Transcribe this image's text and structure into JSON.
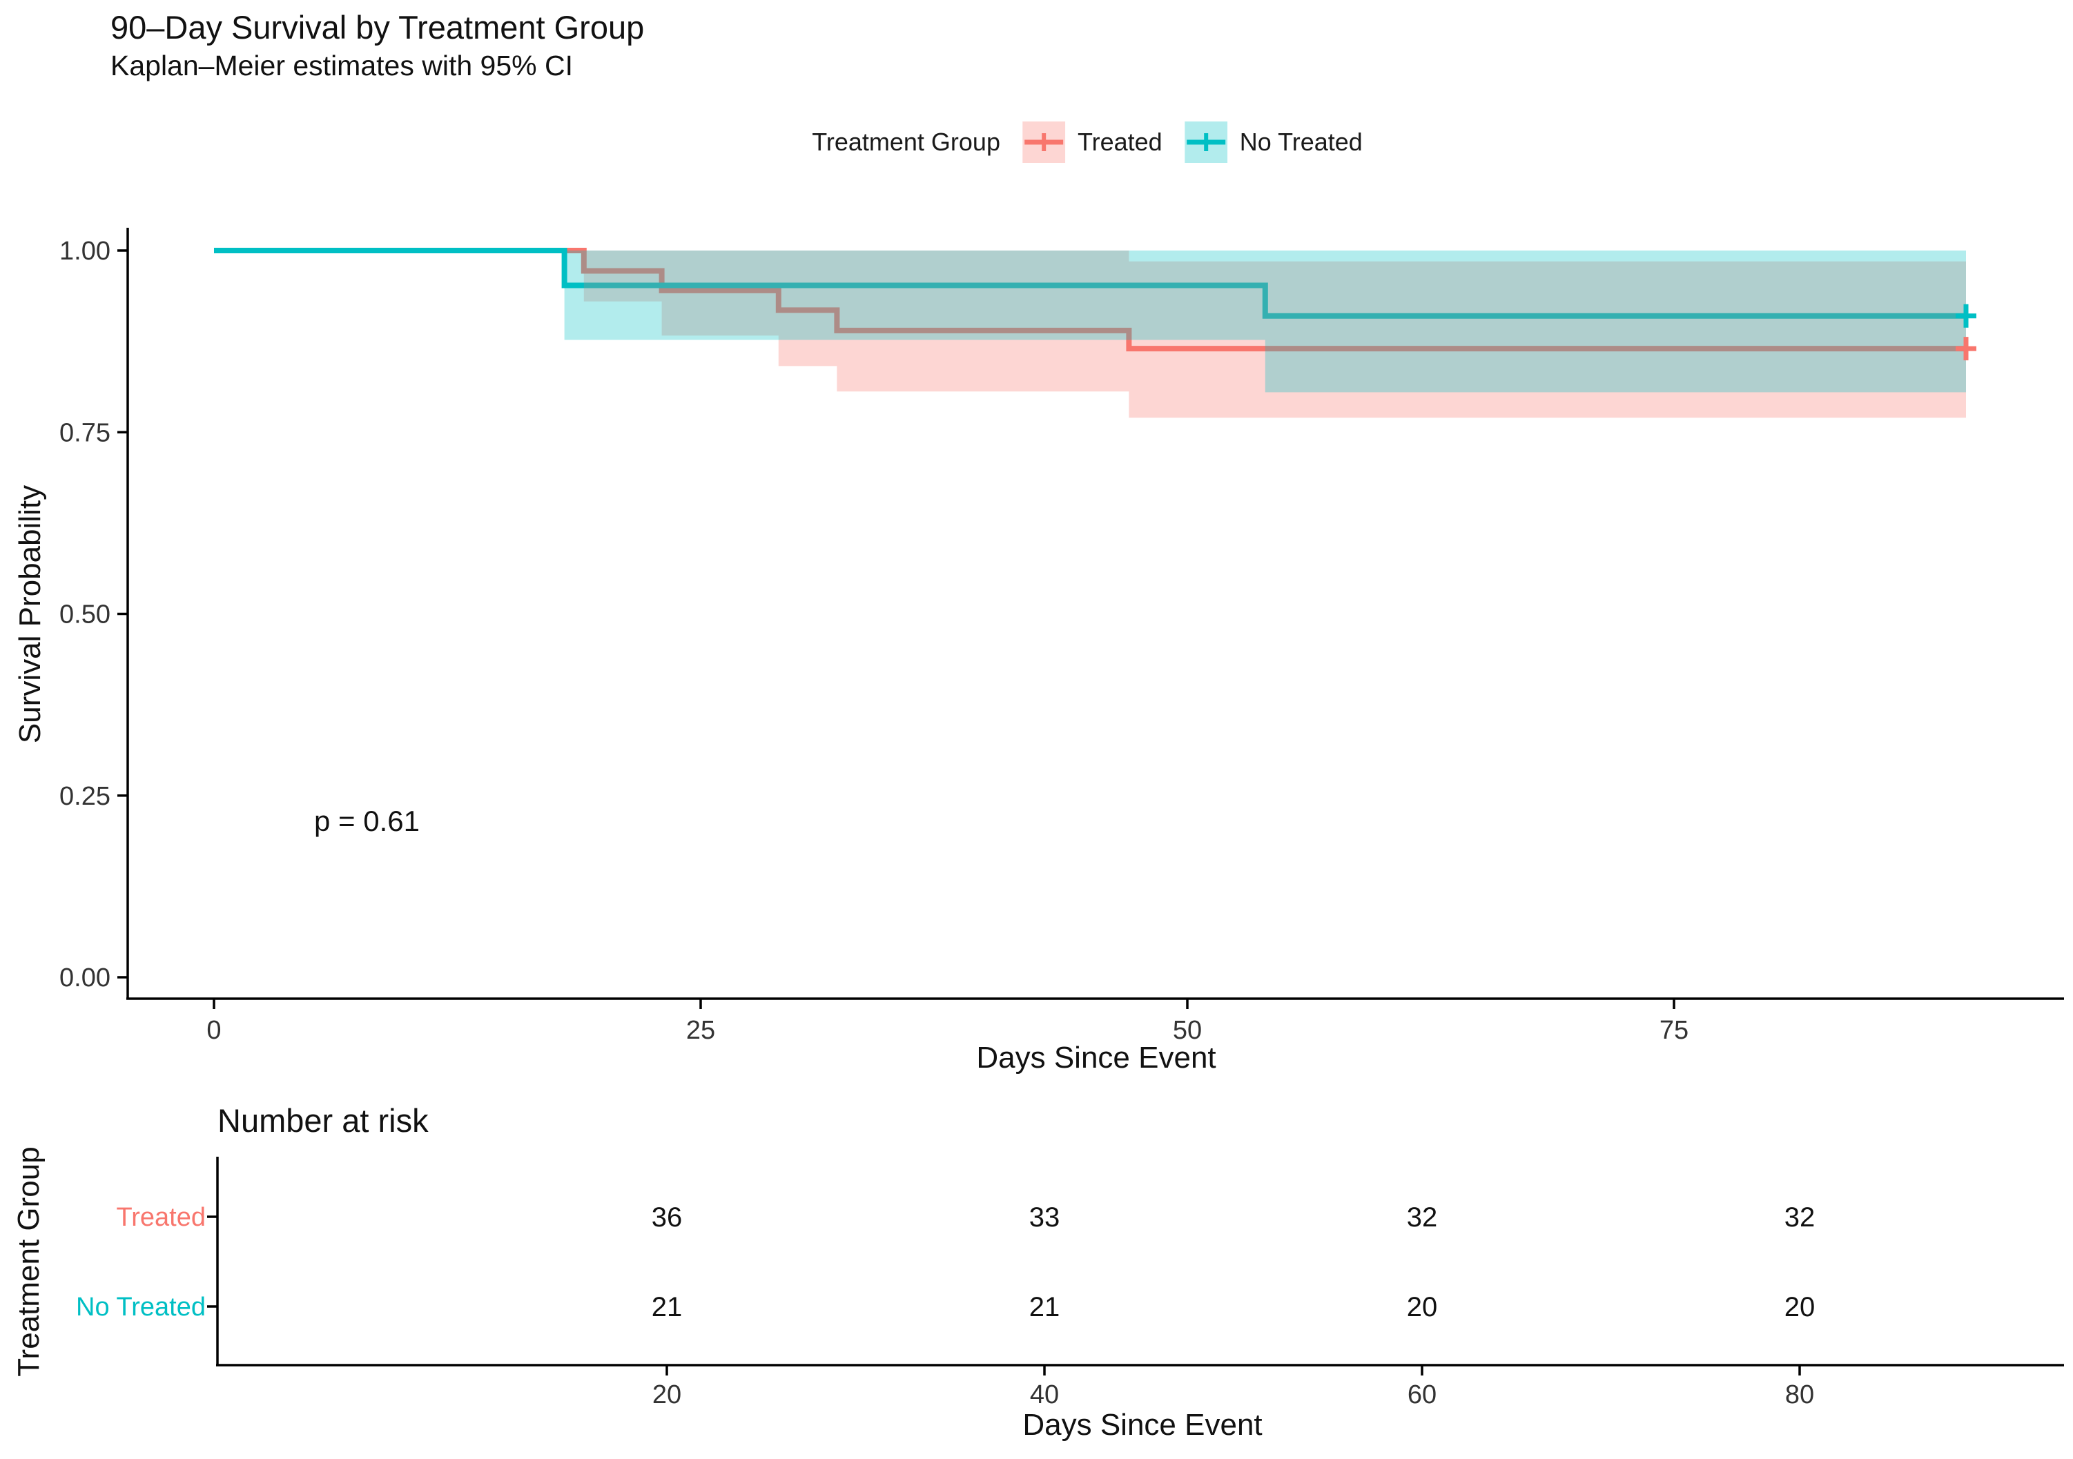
{
  "header": {
    "title": "90–Day Survival by Treatment Group",
    "subtitle": "Kaplan–Meier estimates with 95% CI"
  },
  "legend": {
    "title": "Treatment Group",
    "items": [
      {
        "label": "Treated",
        "color": "#F8766D"
      },
      {
        "label": "No Treated",
        "color": "#00BFC4"
      }
    ]
  },
  "chart_data": {
    "type": "line",
    "subtype": "kaplan-meier-step",
    "title": "90–Day Survival by Treatment Group",
    "subtitle": "Kaplan–Meier estimates with 95% CI",
    "xlabel": "Days Since Event",
    "ylabel": "Survival Probability",
    "pvalue_text": "p = 0.61",
    "xlim": [
      0,
      95
    ],
    "ylim": [
      0,
      1
    ],
    "x_ticks": [
      {
        "value": 0,
        "label": "0"
      },
      {
        "value": 25,
        "label": "25"
      },
      {
        "value": 50,
        "label": "50"
      },
      {
        "value": 75,
        "label": "75"
      }
    ],
    "y_ticks": [
      {
        "value": 0.0,
        "label": "0.00"
      },
      {
        "value": 0.25,
        "label": "0.25"
      },
      {
        "value": 0.5,
        "label": "0.50"
      },
      {
        "value": 0.75,
        "label": "0.75"
      },
      {
        "value": 1.0,
        "label": "1.00"
      }
    ],
    "grid": false,
    "legend_position": "top",
    "series": [
      {
        "name": "Treated",
        "color": "#F8766D",
        "ci_alpha": 0.3,
        "end_time": 90,
        "censored_at_end": true,
        "steps": [
          {
            "t": 0,
            "s": 1.0
          },
          {
            "t": 19,
            "s": 0.972
          },
          {
            "t": 23,
            "s": 0.945
          },
          {
            "t": 29,
            "s": 0.918
          },
          {
            "t": 32,
            "s": 0.89
          },
          {
            "t": 47,
            "s": 0.865
          }
        ],
        "ci": [
          {
            "from": 19,
            "to": 23,
            "lower": 0.93,
            "upper": 1.0
          },
          {
            "from": 23,
            "to": 29,
            "lower": 0.883,
            "upper": 1.0
          },
          {
            "from": 29,
            "to": 32,
            "lower": 0.841,
            "upper": 1.0
          },
          {
            "from": 32,
            "to": 47,
            "lower": 0.806,
            "upper": 1.0
          },
          {
            "from": 47,
            "to": 90,
            "lower": 0.77,
            "upper": 0.985
          }
        ]
      },
      {
        "name": "No Treated",
        "color": "#00BFC4",
        "ci_alpha": 0.3,
        "end_time": 90,
        "censored_at_end": true,
        "steps": [
          {
            "t": 0,
            "s": 1.0
          },
          {
            "t": 18,
            "s": 0.952
          },
          {
            "t": 54,
            "s": 0.91
          }
        ],
        "ci": [
          {
            "from": 18,
            "to": 54,
            "lower": 0.877,
            "upper": 1.0
          },
          {
            "from": 54,
            "to": 90,
            "lower": 0.805,
            "upper": 1.0
          }
        ]
      }
    ],
    "risk_table": {
      "title": "Number at risk",
      "ylabel": "Treatment Group",
      "xlabel": "Days Since Event",
      "times": [
        {
          "value": 20,
          "label": "20"
        },
        {
          "value": 40,
          "label": "40"
        },
        {
          "value": 60,
          "label": "60"
        },
        {
          "value": 80,
          "label": "80"
        }
      ],
      "rows": [
        {
          "name": "Treated",
          "color": "#F8766D",
          "counts": [
            "36",
            "33",
            "32",
            "32"
          ]
        },
        {
          "name": "No Treated",
          "color": "#00BFC4",
          "counts": [
            "21",
            "21",
            "20",
            "20"
          ]
        }
      ]
    }
  }
}
